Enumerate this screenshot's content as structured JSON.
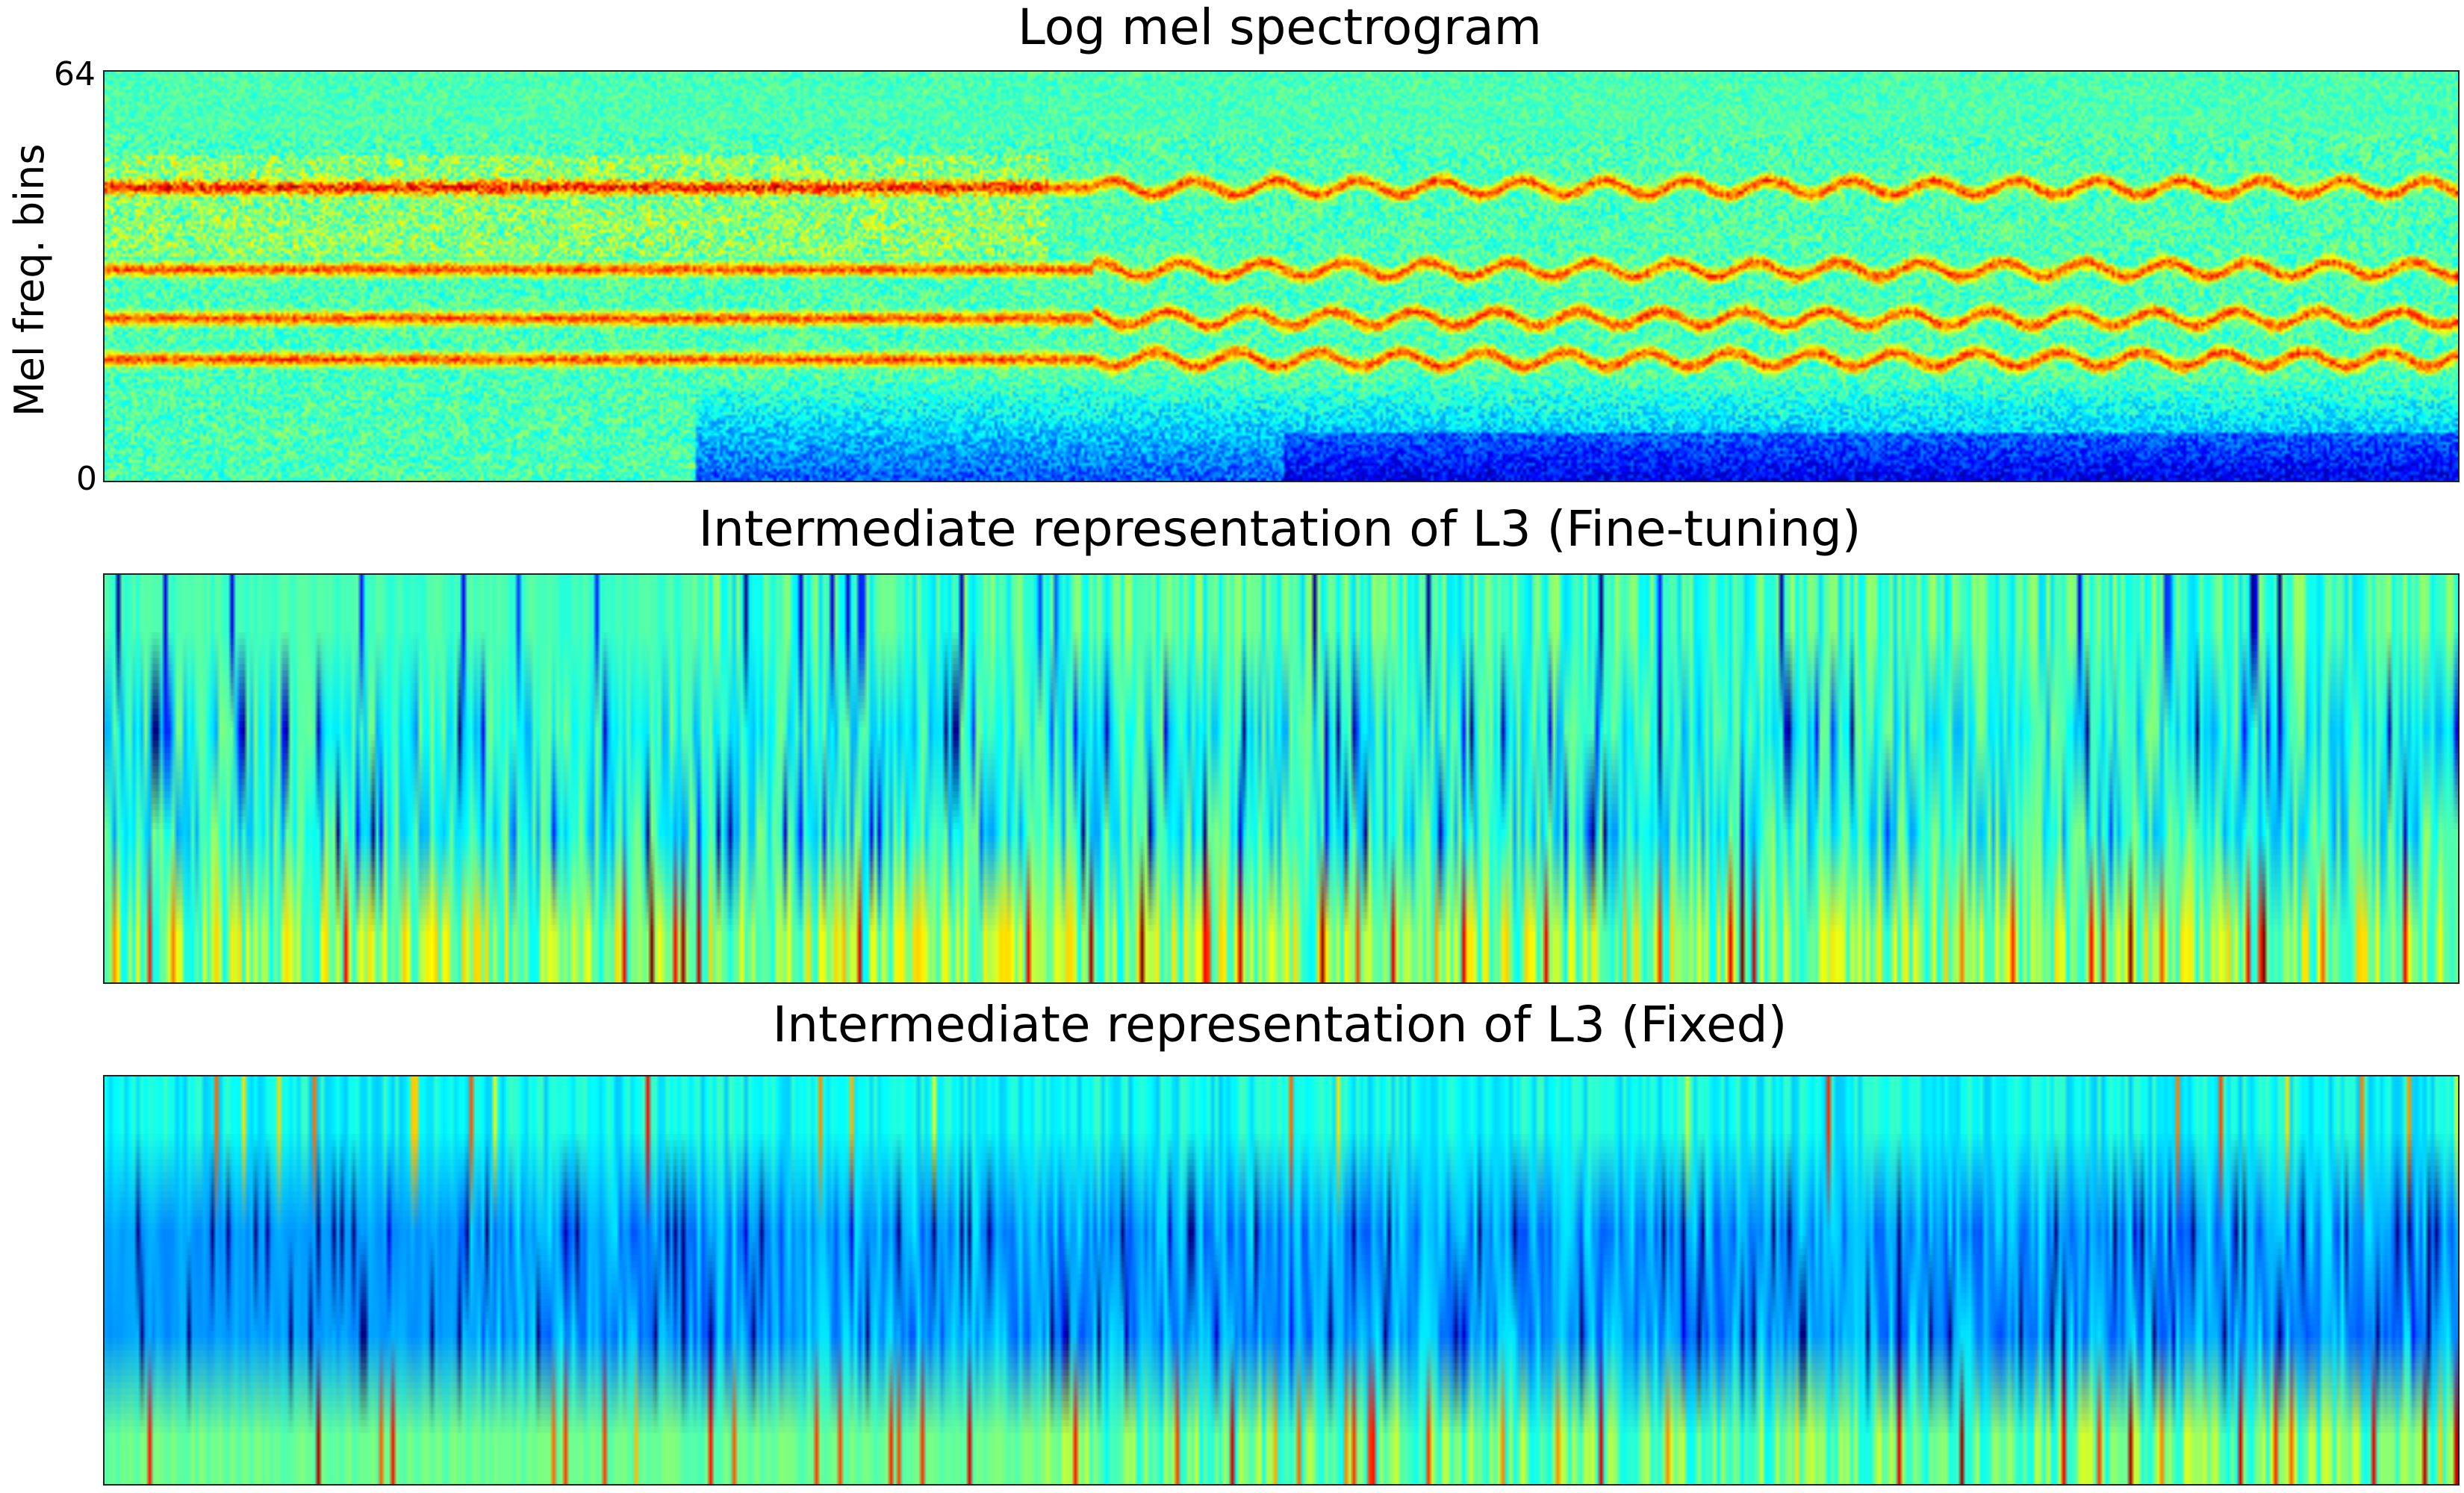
{
  "chart_data": [
    {
      "type": "heatmap",
      "title": "Log mel spectrogram",
      "ylabel": "Mel freq. bins",
      "yticks": [
        "64",
        "0"
      ],
      "ylim": [
        0,
        64
      ],
      "colormap": "jet",
      "bins": 64
    },
    {
      "type": "heatmap",
      "title": "Intermediate representation of L3 (Fine-tuning)",
      "colormap": "jet",
      "rows": 4
    },
    {
      "type": "heatmap",
      "title": "Intermediate representation of L3 (Fixed)",
      "colormap": "jet",
      "rows": 4
    }
  ]
}
